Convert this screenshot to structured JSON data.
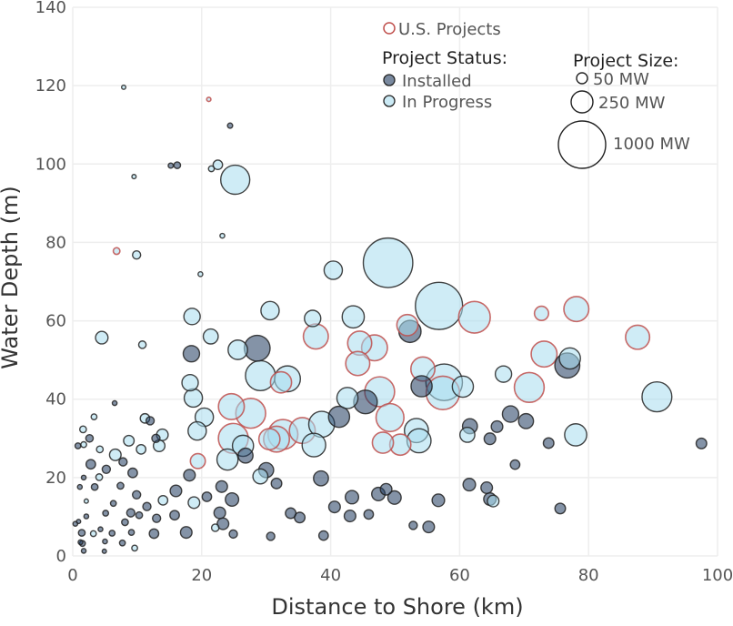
{
  "chart_data": {
    "type": "scatter",
    "title": "",
    "xlabel": "Distance to Shore (km)",
    "ylabel": "Water Depth (m)",
    "xlim": [
      0,
      100
    ],
    "ylim": [
      0,
      140
    ],
    "xticks": [
      0,
      20,
      40,
      60,
      80,
      100
    ],
    "yticks": [
      0,
      20,
      40,
      60,
      80,
      100,
      120,
      140
    ],
    "grid": true,
    "legend": {
      "us_label": "U.S. Projects",
      "status_title": "Project Status:",
      "status_items": [
        {
          "label": "Installed",
          "color": "#1f3a5f"
        },
        {
          "label": "In Progress",
          "color": "#a8dcef"
        }
      ],
      "size_title": "Project Size:",
      "size_items": [
        {
          "label": "50 MW",
          "mw": 50
        },
        {
          "label": "250 MW",
          "mw": 250
        },
        {
          "label": "1000 MW",
          "mw": 1000
        }
      ]
    },
    "colors": {
      "installed": "#1f3a5f",
      "in_progress": "#a8dcef",
      "us_edge": "#c0504d",
      "edge": "#222222"
    },
    "points": [
      {
        "x": 48.9,
        "y": 74.8,
        "mw": 1100,
        "status": "in_progress"
      },
      {
        "x": 56.8,
        "y": 63.8,
        "mw": 1000,
        "status": "in_progress"
      },
      {
        "x": 25.2,
        "y": 96.0,
        "mw": 380,
        "status": "in_progress"
      },
      {
        "x": 90.6,
        "y": 40.6,
        "mw": 400,
        "status": "in_progress"
      },
      {
        "x": 62.3,
        "y": 60.9,
        "mw": 450,
        "status": "in_progress",
        "us": true
      },
      {
        "x": 78.1,
        "y": 63.0,
        "mw": 280,
        "status": "in_progress",
        "us": true
      },
      {
        "x": 87.6,
        "y": 55.8,
        "mw": 260,
        "status": "in_progress",
        "us": true
      },
      {
        "x": 72.7,
        "y": 61.9,
        "mw": 90,
        "status": "in_progress",
        "us": true
      },
      {
        "x": 73.1,
        "y": 51.5,
        "mw": 300,
        "status": "in_progress",
        "us": true
      },
      {
        "x": 76.7,
        "y": 48.6,
        "mw": 280,
        "status": "installed"
      },
      {
        "x": 77.1,
        "y": 50.4,
        "mw": 200,
        "status": "in_progress"
      },
      {
        "x": 70.8,
        "y": 43.0,
        "mw": 400,
        "status": "in_progress",
        "us": true
      },
      {
        "x": 78.0,
        "y": 30.9,
        "mw": 220,
        "status": "in_progress"
      },
      {
        "x": 66.8,
        "y": 46.4,
        "mw": 120,
        "status": "in_progress"
      },
      {
        "x": 57.6,
        "y": 44.3,
        "mw": 600,
        "status": "in_progress"
      },
      {
        "x": 57.4,
        "y": 41.6,
        "mw": 500,
        "status": "in_progress",
        "us": true
      },
      {
        "x": 54.3,
        "y": 47.7,
        "mw": 260,
        "status": "in_progress",
        "us": true
      },
      {
        "x": 52.3,
        "y": 57.3,
        "mw": 220,
        "status": "installed"
      },
      {
        "x": 51.9,
        "y": 58.9,
        "mw": 200,
        "status": "in_progress",
        "us": true
      },
      {
        "x": 46.8,
        "y": 53.1,
        "mw": 300,
        "status": "in_progress",
        "us": true
      },
      {
        "x": 44.5,
        "y": 54.3,
        "mw": 260,
        "status": "in_progress",
        "us": true
      },
      {
        "x": 44.2,
        "y": 49.1,
        "mw": 260,
        "status": "in_progress",
        "us": true
      },
      {
        "x": 43.5,
        "y": 61.0,
        "mw": 220,
        "status": "in_progress"
      },
      {
        "x": 40.4,
        "y": 72.9,
        "mw": 150,
        "status": "in_progress"
      },
      {
        "x": 37.7,
        "y": 56.0,
        "mw": 280,
        "status": "in_progress",
        "us": true
      },
      {
        "x": 37.2,
        "y": 60.6,
        "mw": 120,
        "status": "in_progress"
      },
      {
        "x": 30.6,
        "y": 62.6,
        "mw": 150,
        "status": "in_progress"
      },
      {
        "x": 33.3,
        "y": 45.2,
        "mw": 300,
        "status": "in_progress"
      },
      {
        "x": 32.3,
        "y": 44.3,
        "mw": 200,
        "status": "in_progress",
        "us": true
      },
      {
        "x": 28.6,
        "y": 53.0,
        "mw": 300,
        "status": "installed"
      },
      {
        "x": 25.6,
        "y": 52.6,
        "mw": 170,
        "status": "in_progress"
      },
      {
        "x": 29.1,
        "y": 46.0,
        "mw": 400,
        "status": "in_progress"
      },
      {
        "x": 27.6,
        "y": 36.4,
        "mw": 400,
        "status": "in_progress",
        "us": true
      },
      {
        "x": 24.6,
        "y": 38.1,
        "mw": 300,
        "status": "in_progress",
        "us": true
      },
      {
        "x": 24.9,
        "y": 30.0,
        "mw": 400,
        "status": "in_progress",
        "us": true
      },
      {
        "x": 32.6,
        "y": 31.0,
        "mw": 400,
        "status": "in_progress",
        "us": true
      },
      {
        "x": 35.6,
        "y": 32.0,
        "mw": 300,
        "status": "in_progress",
        "us": true
      },
      {
        "x": 38.6,
        "y": 33.6,
        "mw": 300,
        "status": "in_progress"
      },
      {
        "x": 41.3,
        "y": 35.5,
        "mw": 200,
        "status": "installed"
      },
      {
        "x": 42.6,
        "y": 40.3,
        "mw": 200,
        "status": "in_progress"
      },
      {
        "x": 45.4,
        "y": 39.3,
        "mw": 250,
        "status": "installed"
      },
      {
        "x": 47.6,
        "y": 41.9,
        "mw": 400,
        "status": "in_progress",
        "us": true
      },
      {
        "x": 49.2,
        "y": 35.3,
        "mw": 350,
        "status": "in_progress",
        "us": true
      },
      {
        "x": 53.3,
        "y": 32.0,
        "mw": 260,
        "status": "in_progress"
      },
      {
        "x": 53.7,
        "y": 29.4,
        "mw": 260,
        "status": "in_progress"
      },
      {
        "x": 50.8,
        "y": 28.4,
        "mw": 200,
        "status": "in_progress",
        "us": true
      },
      {
        "x": 48.1,
        "y": 28.9,
        "mw": 200,
        "status": "in_progress",
        "us": true
      },
      {
        "x": 37.4,
        "y": 28.3,
        "mw": 250,
        "status": "in_progress"
      },
      {
        "x": 31.6,
        "y": 29.8,
        "mw": 300,
        "status": "in_progress",
        "us": true
      },
      {
        "x": 30.5,
        "y": 29.8,
        "mw": 200,
        "status": "in_progress",
        "us": true
      },
      {
        "x": 26.4,
        "y": 28.1,
        "mw": 200,
        "status": "in_progress"
      },
      {
        "x": 24.0,
        "y": 24.6,
        "mw": 200,
        "status": "in_progress"
      },
      {
        "x": 19.4,
        "y": 24.2,
        "mw": 100,
        "status": "in_progress",
        "us": true
      },
      {
        "x": 20.4,
        "y": 35.4,
        "mw": 150,
        "status": "in_progress"
      },
      {
        "x": 19.3,
        "y": 31.9,
        "mw": 150,
        "status": "in_progress"
      },
      {
        "x": 18.7,
        "y": 40.3,
        "mw": 150,
        "status": "in_progress"
      },
      {
        "x": 18.2,
        "y": 44.2,
        "mw": 120,
        "status": "in_progress"
      },
      {
        "x": 18.5,
        "y": 61.1,
        "mw": 120,
        "status": "in_progress"
      },
      {
        "x": 18.4,
        "y": 51.6,
        "mw": 120,
        "status": "installed"
      },
      {
        "x": 21.4,
        "y": 56.0,
        "mw": 100,
        "status": "in_progress"
      },
      {
        "x": 4.5,
        "y": 55.7,
        "mw": 70,
        "status": "in_progress"
      },
      {
        "x": 10.8,
        "y": 53.9,
        "mw": 25,
        "status": "in_progress"
      },
      {
        "x": 9.9,
        "y": 76.8,
        "mw": 30,
        "status": "in_progress"
      },
      {
        "x": 6.8,
        "y": 77.8,
        "mw": 20,
        "status": "in_progress",
        "us": true
      },
      {
        "x": 7.9,
        "y": 119.6,
        "mw": 8,
        "status": "in_progress"
      },
      {
        "x": 21.1,
        "y": 116.5,
        "mw": 8,
        "status": "in_progress",
        "us": true
      },
      {
        "x": 24.4,
        "y": 109.8,
        "mw": 12,
        "status": "installed"
      },
      {
        "x": 9.5,
        "y": 96.8,
        "mw": 8,
        "status": "in_progress"
      },
      {
        "x": 15.2,
        "y": 99.6,
        "mw": 12,
        "status": "installed"
      },
      {
        "x": 16.2,
        "y": 99.7,
        "mw": 20,
        "status": "installed"
      },
      {
        "x": 21.5,
        "y": 98.8,
        "mw": 15,
        "status": "in_progress"
      },
      {
        "x": 22.5,
        "y": 99.8,
        "mw": 40,
        "status": "in_progress"
      },
      {
        "x": 23.2,
        "y": 81.7,
        "mw": 10,
        "status": "in_progress"
      },
      {
        "x": 19.8,
        "y": 71.9,
        "mw": 10,
        "status": "in_progress"
      },
      {
        "x": 54.1,
        "y": 43.3,
        "mw": 200,
        "status": "installed"
      },
      {
        "x": 60.5,
        "y": 43.2,
        "mw": 200,
        "status": "in_progress"
      },
      {
        "x": 61.6,
        "y": 33.1,
        "mw": 100,
        "status": "installed"
      },
      {
        "x": 61.2,
        "y": 30.9,
        "mw": 100,
        "status": "in_progress"
      },
      {
        "x": 64.7,
        "y": 29.9,
        "mw": 60,
        "status": "installed"
      },
      {
        "x": 65.8,
        "y": 33.0,
        "mw": 60,
        "status": "installed"
      },
      {
        "x": 67.9,
        "y": 36.2,
        "mw": 120,
        "status": "installed"
      },
      {
        "x": 70.3,
        "y": 34.4,
        "mw": 100,
        "status": "installed"
      },
      {
        "x": 73.8,
        "y": 28.8,
        "mw": 50,
        "status": "installed"
      },
      {
        "x": 97.5,
        "y": 28.7,
        "mw": 50,
        "status": "installed"
      },
      {
        "x": 68.6,
        "y": 23.3,
        "mw": 40,
        "status": "installed"
      },
      {
        "x": 61.5,
        "y": 18.2,
        "mw": 70,
        "status": "installed"
      },
      {
        "x": 64.2,
        "y": 17.4,
        "mw": 60,
        "status": "installed"
      },
      {
        "x": 64.7,
        "y": 14.5,
        "mw": 70,
        "status": "installed"
      },
      {
        "x": 65.2,
        "y": 14.0,
        "mw": 60,
        "status": "in_progress"
      },
      {
        "x": 75.6,
        "y": 12.1,
        "mw": 50,
        "status": "installed"
      },
      {
        "x": 55.2,
        "y": 7.4,
        "mw": 60,
        "status": "installed"
      },
      {
        "x": 56.7,
        "y": 14.2,
        "mw": 70,
        "status": "installed"
      },
      {
        "x": 49.9,
        "y": 14.9,
        "mw": 80,
        "status": "installed"
      },
      {
        "x": 52.8,
        "y": 7.8,
        "mw": 30,
        "status": "installed"
      },
      {
        "x": 45.9,
        "y": 10.6,
        "mw": 40,
        "status": "installed"
      },
      {
        "x": 43.0,
        "y": 10.2,
        "mw": 60,
        "status": "installed"
      },
      {
        "x": 43.3,
        "y": 15.0,
        "mw": 80,
        "status": "installed"
      },
      {
        "x": 47.4,
        "y": 15.8,
        "mw": 80,
        "status": "installed"
      },
      {
        "x": 48.6,
        "y": 17.0,
        "mw": 60,
        "status": "installed"
      },
      {
        "x": 38.5,
        "y": 19.8,
        "mw": 100,
        "status": "installed"
      },
      {
        "x": 40.6,
        "y": 12.5,
        "mw": 60,
        "status": "installed"
      },
      {
        "x": 38.9,
        "y": 5.2,
        "mw": 40,
        "status": "installed"
      },
      {
        "x": 35.2,
        "y": 9.8,
        "mw": 50,
        "status": "installed"
      },
      {
        "x": 33.8,
        "y": 10.9,
        "mw": 50,
        "status": "installed"
      },
      {
        "x": 30.7,
        "y": 5.0,
        "mw": 30,
        "status": "installed"
      },
      {
        "x": 31.6,
        "y": 18.5,
        "mw": 50,
        "status": "installed"
      },
      {
        "x": 30.0,
        "y": 21.9,
        "mw": 100,
        "status": "installed"
      },
      {
        "x": 29.1,
        "y": 20.3,
        "mw": 100,
        "status": "in_progress"
      },
      {
        "x": 26.8,
        "y": 25.6,
        "mw": 100,
        "status": "installed"
      },
      {
        "x": 24.7,
        "y": 14.4,
        "mw": 80,
        "status": "installed"
      },
      {
        "x": 23.1,
        "y": 17.7,
        "mw": 60,
        "status": "installed"
      },
      {
        "x": 22.8,
        "y": 11.0,
        "mw": 60,
        "status": "installed"
      },
      {
        "x": 23.3,
        "y": 8.2,
        "mw": 60,
        "status": "installed"
      },
      {
        "x": 24.9,
        "y": 5.6,
        "mw": 30,
        "status": "installed"
      },
      {
        "x": 22.1,
        "y": 7.2,
        "mw": 25,
        "status": "in_progress"
      },
      {
        "x": 20.8,
        "y": 15.1,
        "mw": 40,
        "status": "installed"
      },
      {
        "x": 18.8,
        "y": 13.6,
        "mw": 60,
        "status": "in_progress"
      },
      {
        "x": 18.1,
        "y": 20.6,
        "mw": 60,
        "status": "installed"
      },
      {
        "x": 16.0,
        "y": 16.6,
        "mw": 60,
        "status": "installed"
      },
      {
        "x": 17.6,
        "y": 6.0,
        "mw": 60,
        "status": "installed"
      },
      {
        "x": 15.8,
        "y": 10.4,
        "mw": 40,
        "status": "installed"
      },
      {
        "x": 14.0,
        "y": 14.2,
        "mw": 40,
        "status": "in_progress"
      },
      {
        "x": 13.0,
        "y": 9.6,
        "mw": 30,
        "status": "installed"
      },
      {
        "x": 12.6,
        "y": 5.7,
        "mw": 40,
        "status": "installed"
      },
      {
        "x": 13.4,
        "y": 28.1,
        "mw": 60,
        "status": "in_progress"
      },
      {
        "x": 13.9,
        "y": 30.9,
        "mw": 60,
        "status": "in_progress"
      },
      {
        "x": 12.9,
        "y": 30.0,
        "mw": 30,
        "status": "installed"
      },
      {
        "x": 11.2,
        "y": 35.1,
        "mw": 40,
        "status": "in_progress"
      },
      {
        "x": 12.0,
        "y": 34.5,
        "mw": 30,
        "status": "installed"
      },
      {
        "x": 10.6,
        "y": 27.2,
        "mw": 40,
        "status": "in_progress"
      },
      {
        "x": 8.7,
        "y": 29.4,
        "mw": 50,
        "status": "in_progress"
      },
      {
        "x": 7.8,
        "y": 24.0,
        "mw": 30,
        "status": "installed"
      },
      {
        "x": 9.3,
        "y": 21.2,
        "mw": 40,
        "status": "installed"
      },
      {
        "x": 9.9,
        "y": 15.6,
        "mw": 30,
        "status": "installed"
      },
      {
        "x": 9.0,
        "y": 11.0,
        "mw": 30,
        "status": "installed"
      },
      {
        "x": 8.1,
        "y": 8.6,
        "mw": 20,
        "status": "installed"
      },
      {
        "x": 10.3,
        "y": 10.4,
        "mw": 20,
        "status": "installed"
      },
      {
        "x": 11.5,
        "y": 12.6,
        "mw": 30,
        "status": "installed"
      },
      {
        "x": 6.6,
        "y": 25.8,
        "mw": 60,
        "status": "in_progress"
      },
      {
        "x": 5.2,
        "y": 22.1,
        "mw": 30,
        "status": "installed"
      },
      {
        "x": 4.2,
        "y": 27.2,
        "mw": 20,
        "status": "in_progress"
      },
      {
        "x": 4.1,
        "y": 20.1,
        "mw": 20,
        "status": "in_progress"
      },
      {
        "x": 3.4,
        "y": 17.6,
        "mw": 20,
        "status": "installed"
      },
      {
        "x": 2.8,
        "y": 23.4,
        "mw": 40,
        "status": "installed"
      },
      {
        "x": 2.6,
        "y": 30.0,
        "mw": 25,
        "status": "installed"
      },
      {
        "x": 1.7,
        "y": 28.4,
        "mw": 15,
        "status": "in_progress"
      },
      {
        "x": 0.8,
        "y": 28.1,
        "mw": 15,
        "status": "installed"
      },
      {
        "x": 1.6,
        "y": 32.3,
        "mw": 20,
        "status": "in_progress"
      },
      {
        "x": 3.3,
        "y": 35.5,
        "mw": 15,
        "status": "in_progress"
      },
      {
        "x": 6.5,
        "y": 39.0,
        "mw": 10,
        "status": "installed"
      },
      {
        "x": 1.7,
        "y": 20.0,
        "mw": 10,
        "status": "installed"
      },
      {
        "x": 1.1,
        "y": 17.6,
        "mw": 10,
        "status": "installed"
      },
      {
        "x": 2.1,
        "y": 14.0,
        "mw": 8,
        "status": "in_progress"
      },
      {
        "x": 2.1,
        "y": 10.1,
        "mw": 10,
        "status": "installed"
      },
      {
        "x": 0.9,
        "y": 8.8,
        "mw": 8,
        "status": "installed"
      },
      {
        "x": 1.4,
        "y": 5.9,
        "mw": 20,
        "status": "installed"
      },
      {
        "x": 1.5,
        "y": 3.2,
        "mw": 15,
        "status": "installed"
      },
      {
        "x": 1.7,
        "y": 1.3,
        "mw": 10,
        "status": "installed"
      },
      {
        "x": 3.2,
        "y": 5.7,
        "mw": 15,
        "status": "in_progress"
      },
      {
        "x": 4.3,
        "y": 6.8,
        "mw": 10,
        "status": "installed"
      },
      {
        "x": 5.1,
        "y": 10.9,
        "mw": 15,
        "status": "installed"
      },
      {
        "x": 5.0,
        "y": 3.7,
        "mw": 10,
        "status": "installed"
      },
      {
        "x": 4.9,
        "y": 1.2,
        "mw": 8,
        "status": "installed"
      },
      {
        "x": 6.1,
        "y": 5.8,
        "mw": 15,
        "status": "installed"
      },
      {
        "x": 6.3,
        "y": 13.4,
        "mw": 15,
        "status": "installed"
      },
      {
        "x": 7.4,
        "y": 17.9,
        "mw": 20,
        "status": "installed"
      },
      {
        "x": 7.7,
        "y": 3.3,
        "mw": 15,
        "status": "installed"
      },
      {
        "x": 9.1,
        "y": 6.0,
        "mw": 15,
        "status": "installed"
      },
      {
        "x": 9.6,
        "y": 2.0,
        "mw": 15,
        "status": "in_progress"
      },
      {
        "x": 0.4,
        "y": 8.2,
        "mw": 10,
        "status": "installed"
      },
      {
        "x": 1.2,
        "y": 3.5,
        "mw": 10,
        "status": "installed"
      }
    ]
  }
}
